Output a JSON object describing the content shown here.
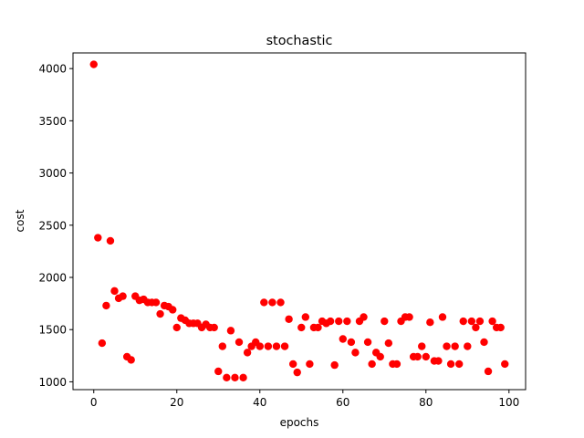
{
  "chart_data": {
    "type": "scatter",
    "title": "stochastic",
    "xlabel": "epochs",
    "ylabel": "cost",
    "xlim": [
      -5,
      104
    ],
    "ylim": [
      925,
      4150
    ],
    "xticks": [
      0,
      20,
      40,
      60,
      80,
      100
    ],
    "yticks": [
      1000,
      1500,
      2000,
      2500,
      3000,
      3500,
      4000
    ],
    "grid": false,
    "marker_color": "#ff0000",
    "series": [
      {
        "x": [
          0,
          1,
          2,
          3,
          4,
          5,
          6,
          7,
          8,
          9,
          10,
          11,
          12,
          13,
          14,
          15,
          16,
          17,
          18,
          19,
          20,
          21,
          22,
          23,
          24,
          25,
          26,
          27,
          28,
          29,
          30,
          31,
          32,
          33,
          34,
          35,
          36,
          37,
          38,
          39,
          40,
          41,
          42,
          43,
          44,
          45,
          46,
          47,
          48,
          49,
          50,
          51,
          52,
          53,
          54,
          55,
          56,
          57,
          58,
          59,
          60,
          61,
          62,
          63,
          64,
          65,
          66,
          67,
          68,
          69,
          70,
          71,
          72,
          73,
          74,
          75,
          76,
          77,
          78,
          79,
          80,
          81,
          82,
          83,
          84,
          85,
          86,
          87,
          88,
          89,
          90,
          91,
          92,
          93,
          94,
          95,
          96,
          97,
          98,
          99
        ],
        "y": [
          4040,
          2380,
          1370,
          1730,
          2350,
          1870,
          1800,
          1820,
          1240,
          1210,
          1820,
          1780,
          1790,
          1760,
          1760,
          1760,
          1650,
          1730,
          1720,
          1690,
          1520,
          1610,
          1590,
          1560,
          1560,
          1560,
          1520,
          1550,
          1520,
          1520,
          1100,
          1340,
          1040,
          1490,
          1040,
          1380,
          1040,
          1280,
          1340,
          1380,
          1340,
          1760,
          1340,
          1760,
          1340,
          1760,
          1340,
          1600,
          1170,
          1090,
          1520,
          1620,
          1170,
          1520,
          1520,
          1580,
          1560,
          1580,
          1160,
          1580,
          1410,
          1580,
          1380,
          1280,
          1580,
          1620,
          1380,
          1170,
          1280,
          1240,
          1580,
          1370,
          1170,
          1170,
          1580,
          1620,
          1620,
          1240,
          1240,
          1340,
          1240,
          1570,
          1200,
          1200,
          1620,
          1340,
          1170,
          1340,
          1170,
          1580,
          1340,
          1580,
          1520,
          1580,
          1380,
          1100,
          1580,
          1520,
          1520,
          1170
        ]
      }
    ]
  }
}
